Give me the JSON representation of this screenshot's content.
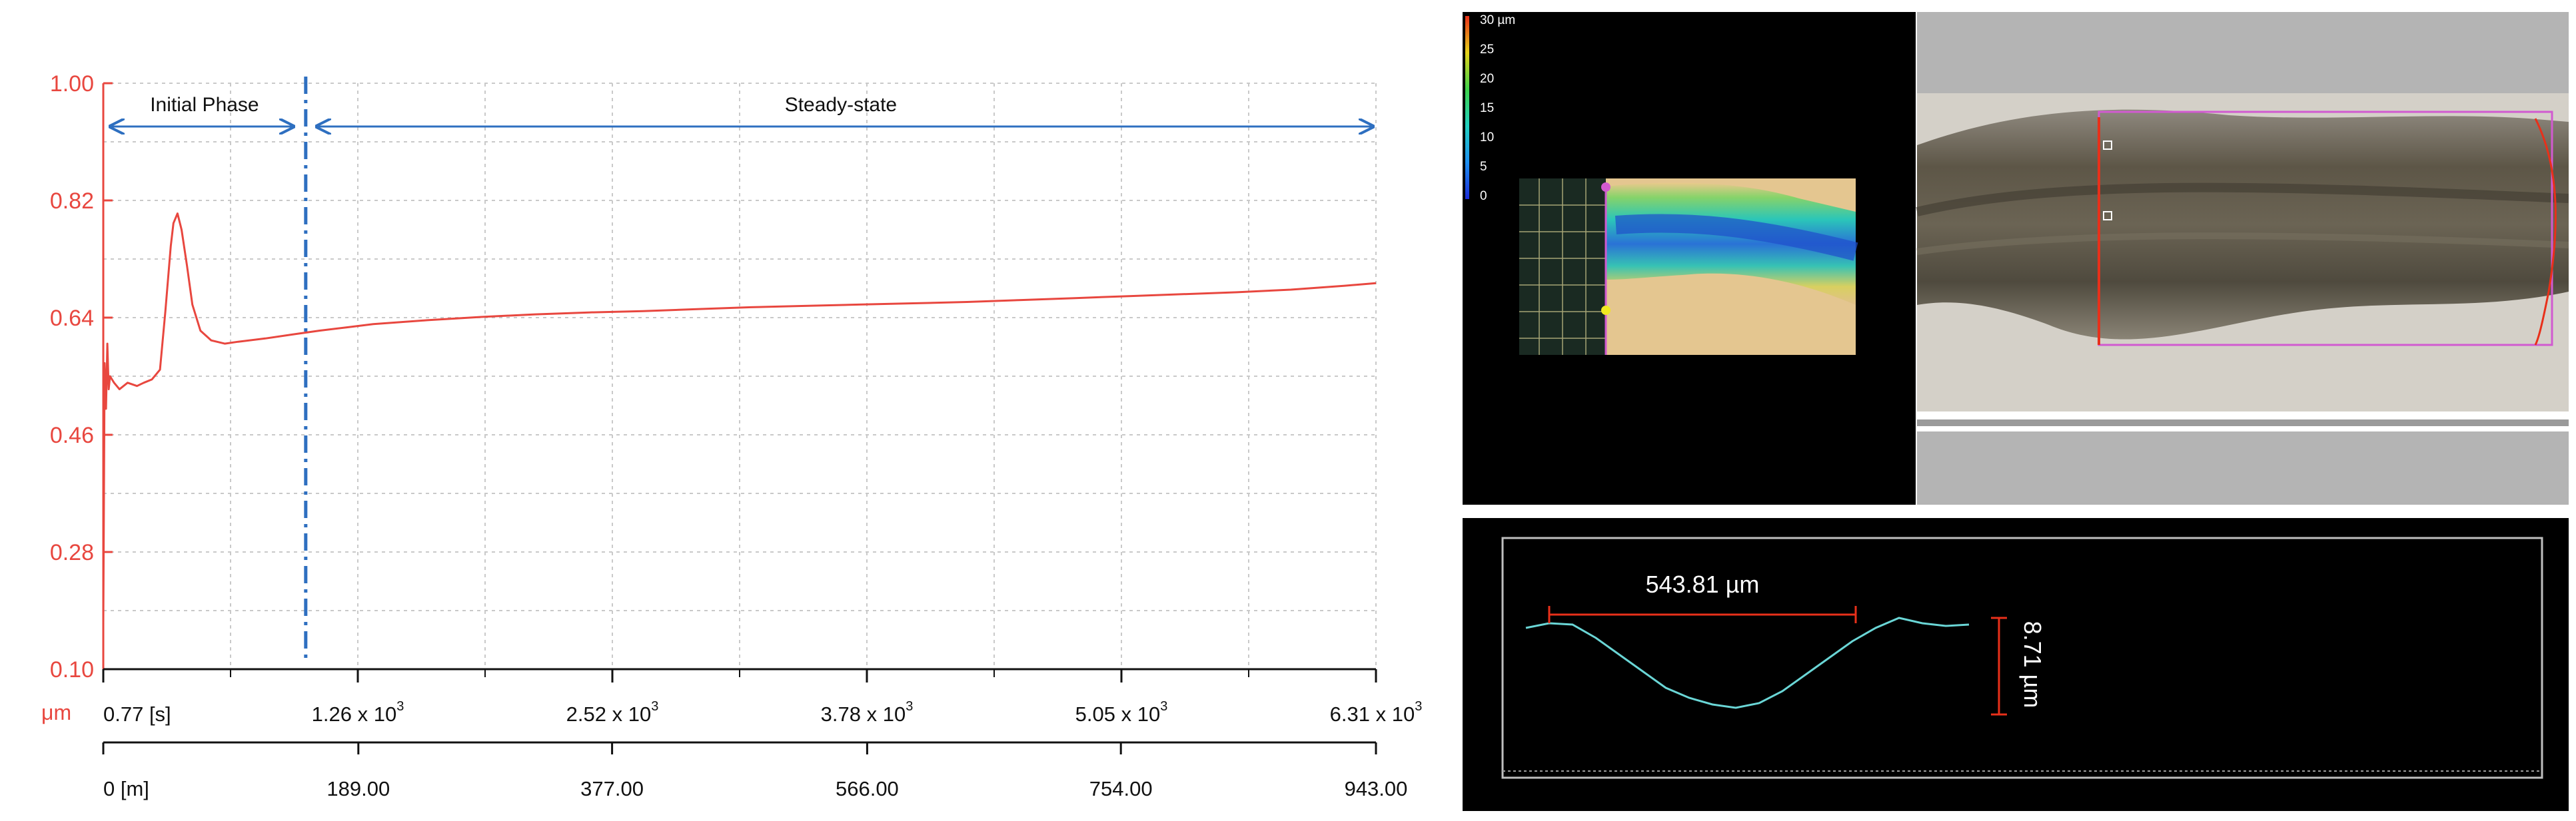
{
  "chart_data": {
    "type": "line",
    "ylim": [
      0.1,
      1.0
    ],
    "yticks": [
      "1.00",
      "0.82",
      "0.64",
      "0.46",
      "0.28",
      "0.10"
    ],
    "y_unit_label": "μm",
    "time_axis": {
      "ticks": [
        {
          "base": "0.77 [s]",
          "exp": ""
        },
        {
          "base": "1.26 x 10",
          "exp": "3"
        },
        {
          "base": "2.52 x 10",
          "exp": "3"
        },
        {
          "base": "3.78 x 10",
          "exp": "3"
        },
        {
          "base": "5.05 x 10",
          "exp": "3"
        },
        {
          "base": "6.31 x 10",
          "exp": "3"
        }
      ]
    },
    "distance_axis": {
      "values": [
        0,
        189,
        377,
        566,
        754,
        943
      ],
      "labels": [
        "0 [m]",
        "189.00",
        "377.00",
        "566.00",
        "754.00",
        "943.00"
      ]
    },
    "transition_x": 150,
    "phases": [
      {
        "label": "Initial Phase"
      },
      {
        "label": "Steady-state"
      }
    ],
    "grid": true,
    "series": [
      {
        "color": "#e8473f",
        "x": [
          0,
          1,
          2,
          3,
          4,
          5,
          8,
          12,
          18,
          25,
          30,
          36,
          42,
          46,
          50,
          52,
          55,
          58,
          62,
          66,
          72,
          80,
          90,
          100,
          120,
          140,
          160,
          180,
          200,
          240,
          280,
          320,
          360,
          400,
          440,
          480,
          520,
          560,
          600,
          640,
          680,
          720,
          760,
          800,
          840,
          880,
          920,
          943
        ],
        "y": [
          0.17,
          0.57,
          0.5,
          0.6,
          0.53,
          0.55,
          0.54,
          0.53,
          0.54,
          0.535,
          0.54,
          0.545,
          0.56,
          0.65,
          0.75,
          0.785,
          0.8,
          0.775,
          0.72,
          0.66,
          0.62,
          0.605,
          0.6,
          0.603,
          0.608,
          0.614,
          0.62,
          0.625,
          0.63,
          0.636,
          0.641,
          0.645,
          0.648,
          0.65,
          0.653,
          0.656,
          0.658,
          0.66,
          0.662,
          0.664,
          0.667,
          0.67,
          0.673,
          0.676,
          0.679,
          0.683,
          0.689,
          0.693
        ]
      }
    ]
  },
  "right_panel": {
    "colorbar": {
      "labels": [
        "30 µm",
        "25",
        "20",
        "15",
        "10",
        "5",
        "0"
      ],
      "vmin": 0,
      "vmax": 30
    },
    "profile": {
      "width_label": "543.81 µm",
      "depth_label": "8.71 µm"
    }
  }
}
